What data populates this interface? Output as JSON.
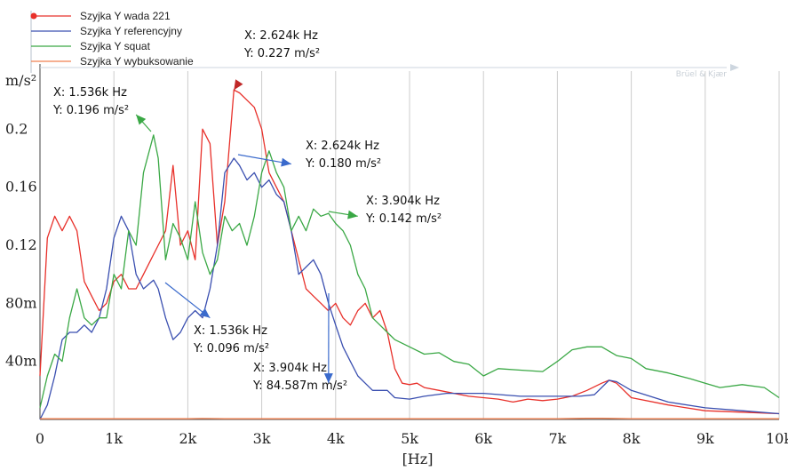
{
  "chart_data": {
    "type": "line",
    "ylabel": "m/s²",
    "xlabel": "[Hz]",
    "xlim": [
      0,
      10000
    ],
    "ylim": [
      0,
      0.24
    ],
    "grid": "vertical",
    "brand": "Brüel & Kjær",
    "x_ticks": [
      {
        "value": 0,
        "label": "0"
      },
      {
        "value": 1000,
        "label": "1k"
      },
      {
        "value": 2000,
        "label": "2k"
      },
      {
        "value": 3000,
        "label": "3k"
      },
      {
        "value": 4000,
        "label": "4k"
      },
      {
        "value": 5000,
        "label": "5k"
      },
      {
        "value": 6000,
        "label": "6k"
      },
      {
        "value": 7000,
        "label": "7k"
      },
      {
        "value": 8000,
        "label": "8k"
      },
      {
        "value": 9000,
        "label": "9k"
      },
      {
        "value": 10000,
        "label": "10k"
      }
    ],
    "y_ticks": [
      {
        "value": 0.04,
        "label": "40m"
      },
      {
        "value": 0.08,
        "label": "80m"
      },
      {
        "value": 0.12,
        "label": "0.12"
      },
      {
        "value": 0.16,
        "label": "0.16"
      },
      {
        "value": 0.2,
        "label": "0.2"
      }
    ],
    "legend": [
      {
        "name": "Szyjka Y wada 221",
        "color": "#e8302a",
        "marker": true
      },
      {
        "name": "Szyjka Y referencyjny",
        "color": "#3a4fb0",
        "marker": false
      },
      {
        "name": "Szyjka Y squat",
        "color": "#3aa845",
        "marker": false
      },
      {
        "name": "Szyjka Y wybuksowanie",
        "color": "#f08050",
        "marker": false
      }
    ],
    "series": [
      {
        "name": "Szyjka Y wada 221",
        "color": "#e8302a",
        "x": [
          0,
          100,
          200,
          300,
          400,
          500,
          600,
          700,
          800,
          900,
          1000,
          1100,
          1200,
          1300,
          1400,
          1500,
          1600,
          1700,
          1800,
          1900,
          2000,
          2100,
          2200,
          2300,
          2400,
          2500,
          2624,
          2700,
          2800,
          2900,
          3000,
          3100,
          3200,
          3300,
          3400,
          3500,
          3600,
          3700,
          3800,
          3900,
          4000,
          4100,
          4200,
          4300,
          4400,
          4500,
          4600,
          4700,
          4800,
          4900,
          5000,
          5100,
          5200,
          5400,
          5600,
          5800,
          6000,
          6200,
          6400,
          6500,
          6600,
          6800,
          7000,
          7200,
          7400,
          7600,
          7700,
          7800,
          8000,
          8500,
          9000,
          9500,
          10000
        ],
        "y": [
          0.03,
          0.125,
          0.14,
          0.13,
          0.14,
          0.13,
          0.095,
          0.085,
          0.075,
          0.08,
          0.095,
          0.1,
          0.09,
          0.09,
          0.1,
          0.11,
          0.12,
          0.13,
          0.175,
          0.12,
          0.13,
          0.11,
          0.2,
          0.19,
          0.12,
          0.15,
          0.227,
          0.225,
          0.22,
          0.215,
          0.2,
          0.17,
          0.16,
          0.15,
          0.13,
          0.11,
          0.09,
          0.085,
          0.08,
          0.075,
          0.08,
          0.07,
          0.065,
          0.075,
          0.08,
          0.07,
          0.075,
          0.06,
          0.035,
          0.025,
          0.024,
          0.025,
          0.022,
          0.02,
          0.018,
          0.016,
          0.015,
          0.014,
          0.012,
          0.013,
          0.014,
          0.013,
          0.014,
          0.016,
          0.02,
          0.025,
          0.027,
          0.025,
          0.015,
          0.01,
          0.006,
          0.005,
          0.004
        ]
      },
      {
        "name": "Szyjka Y referencyjny",
        "color": "#3a4fb0",
        "x": [
          0,
          100,
          200,
          300,
          400,
          500,
          600,
          700,
          800,
          900,
          1000,
          1100,
          1200,
          1300,
          1400,
          1536,
          1600,
          1700,
          1800,
          1900,
          2000,
          2100,
          2200,
          2300,
          2400,
          2500,
          2624,
          2700,
          2800,
          2900,
          3000,
          3100,
          3200,
          3300,
          3400,
          3500,
          3600,
          3700,
          3800,
          3904,
          4000,
          4100,
          4200,
          4300,
          4400,
          4500,
          4600,
          4700,
          4800,
          5000,
          5200,
          5500,
          6000,
          6500,
          7000,
          7300,
          7500,
          7700,
          7800,
          8000,
          8500,
          9000,
          9500,
          10000
        ],
        "y": [
          0,
          0.01,
          0.03,
          0.055,
          0.06,
          0.06,
          0.065,
          0.06,
          0.07,
          0.09,
          0.125,
          0.14,
          0.13,
          0.1,
          0.09,
          0.096,
          0.09,
          0.07,
          0.055,
          0.06,
          0.07,
          0.075,
          0.07,
          0.09,
          0.12,
          0.17,
          0.18,
          0.175,
          0.165,
          0.17,
          0.16,
          0.165,
          0.155,
          0.15,
          0.13,
          0.1,
          0.105,
          0.11,
          0.1,
          0.08,
          0.065,
          0.05,
          0.04,
          0.03,
          0.025,
          0.02,
          0.02,
          0.02,
          0.015,
          0.014,
          0.016,
          0.018,
          0.018,
          0.016,
          0.016,
          0.016,
          0.017,
          0.027,
          0.026,
          0.02,
          0.012,
          0.008,
          0.006,
          0.004
        ]
      },
      {
        "name": "Szyjka Y squat",
        "color": "#3aa845",
        "x": [
          0,
          100,
          200,
          300,
          400,
          500,
          600,
          700,
          800,
          900,
          1000,
          1100,
          1200,
          1300,
          1400,
          1536,
          1600,
          1700,
          1800,
          1900,
          2000,
          2100,
          2200,
          2300,
          2400,
          2500,
          2600,
          2700,
          2800,
          2900,
          3000,
          3100,
          3200,
          3300,
          3400,
          3500,
          3600,
          3700,
          3800,
          3904,
          4000,
          4100,
          4200,
          4300,
          4400,
          4500,
          4600,
          4700,
          4800,
          5000,
          5200,
          5400,
          5600,
          5800,
          6000,
          6200,
          6500,
          6800,
          7000,
          7200,
          7400,
          7600,
          7800,
          8000,
          8200,
          8500,
          8800,
          9000,
          9200,
          9500,
          9800,
          10000
        ],
        "y": [
          0.008,
          0.03,
          0.045,
          0.04,
          0.07,
          0.09,
          0.07,
          0.065,
          0.07,
          0.07,
          0.1,
          0.09,
          0.13,
          0.12,
          0.17,
          0.196,
          0.18,
          0.11,
          0.135,
          0.125,
          0.11,
          0.15,
          0.115,
          0.1,
          0.11,
          0.14,
          0.13,
          0.135,
          0.12,
          0.14,
          0.17,
          0.185,
          0.17,
          0.16,
          0.13,
          0.14,
          0.13,
          0.145,
          0.14,
          0.142,
          0.135,
          0.13,
          0.12,
          0.1,
          0.09,
          0.07,
          0.065,
          0.06,
          0.055,
          0.05,
          0.045,
          0.046,
          0.04,
          0.038,
          0.03,
          0.035,
          0.034,
          0.033,
          0.04,
          0.048,
          0.05,
          0.05,
          0.044,
          0.042,
          0.035,
          0.032,
          0.028,
          0.025,
          0.022,
          0.024,
          0.022,
          0.015
        ]
      },
      {
        "name": "Szyjka Y wybuksowanie",
        "color": "#f08050",
        "x": [
          0,
          2000,
          2200,
          2500,
          3000,
          4000,
          5000,
          6000,
          7000,
          7400,
          7600,
          8000,
          9000,
          10000
        ],
        "y": [
          0.0005,
          0.0005,
          0.0007,
          0.0005,
          0.0005,
          0.0005,
          0.0005,
          0.0005,
          0.0005,
          0.0008,
          0.0008,
          0.0005,
          0.0005,
          0.0005
        ]
      }
    ],
    "annotations": [
      {
        "series": "Szyjka Y wada 221",
        "color": "#c02828",
        "point": {
          "x": 2624,
          "y": 0.227
        },
        "line1": "X: 2.624k Hz",
        "line2": "Y: 0.227 m/s²",
        "anchor": "top-right"
      },
      {
        "series": "Szyjka Y squat",
        "color": "#3aa845",
        "point": {
          "x": 1300,
          "y": 0.21
        },
        "line1": "X: 1.536k Hz",
        "line2": "Y: 0.196 m/s²",
        "anchor": "top-left"
      },
      {
        "series": "Szyjka Y referencyjny",
        "color": "#3a6acc",
        "point": {
          "x": 3400,
          "y": 0.176
        },
        "line1": "X: 2.624k Hz",
        "line2": "Y: 0.180 m/s²",
        "anchor": "right"
      },
      {
        "series": "Szyjka Y squat",
        "color": "#3aa845",
        "point": {
          "x": 4300,
          "y": 0.14
        },
        "line1": "X: 3.904k Hz",
        "line2": "Y: 0.142 m/s²",
        "anchor": "right"
      },
      {
        "series": "Szyjka Y referencyjny",
        "color": "#3a6acc",
        "point": {
          "x": 2300,
          "y": 0.07
        },
        "line1": "X: 1.536k Hz",
        "line2": "Y: 0.096 m/s²",
        "anchor": "bottom-right"
      },
      {
        "series": "Szyjka Y referencyjny",
        "color": "#3a6acc",
        "point": {
          "x": 3904,
          "y": 0.025
        },
        "line1": "X: 3.904k Hz",
        "line2": "Y: 84.587m m/s²",
        "anchor": "bottom"
      }
    ]
  }
}
